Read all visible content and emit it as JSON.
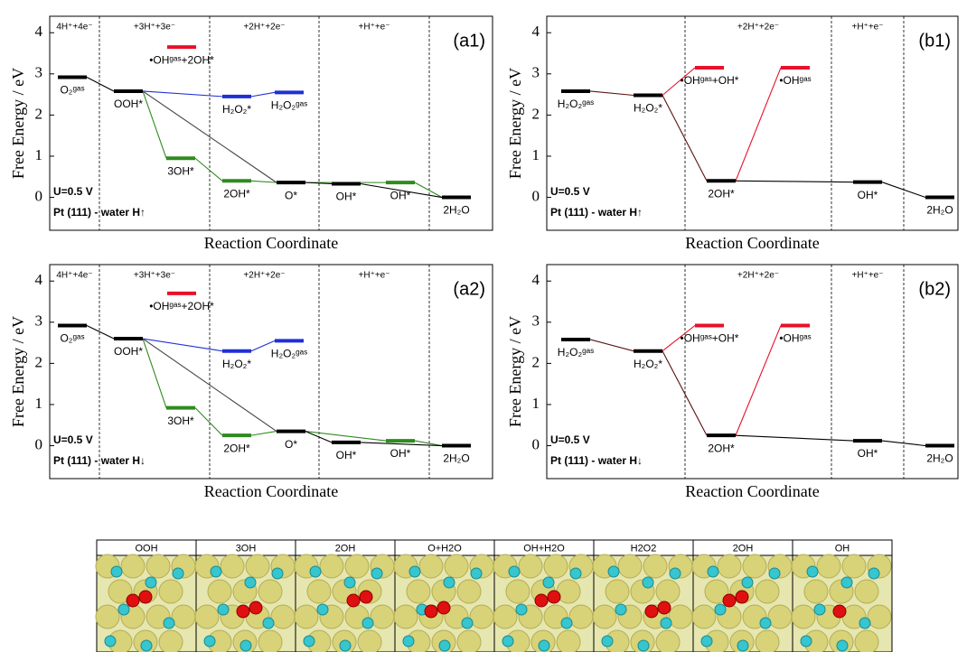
{
  "chart_data": [
    {
      "type": "energy-diagram",
      "title": "(a1)",
      "ylabel": "Free Energy / eV",
      "xlabel": "Reaction Coordinate",
      "ylim": [
        -0.8,
        4.4
      ],
      "yticks": [
        0,
        1,
        2,
        3,
        4
      ],
      "annotations": [
        "U=0.5 V",
        "Pt (111) - water H↑"
      ],
      "steps": [
        "4H⁺+4e⁻",
        "+3H⁺+3e⁻",
        "+2H⁺+2e⁻",
        "+H⁺+e⁻",
        null
      ],
      "levels": [
        {
          "label": "O₂ᵍᵃˢ",
          "value": 2.92,
          "color": "#000000"
        },
        {
          "label": "OOH*",
          "value": 2.58,
          "color": "#000000"
        },
        {
          "label": "•OHᵍᵃˢ+2OH*",
          "value": 3.65,
          "color": "#e8102a"
        },
        {
          "label": "3OH*",
          "value": 0.95,
          "color": "#2e8b1e"
        },
        {
          "label": "H₂O₂*",
          "value": 2.45,
          "color": "#1f2fd6"
        },
        {
          "label": "H₂O₂ᵍᵃˢ",
          "value": 2.55,
          "color": "#1f2fd6"
        },
        {
          "label": "2OH*",
          "value": 0.4,
          "color": "#2e8b1e"
        },
        {
          "label": "O*",
          "value": 0.36,
          "color": "#000000"
        },
        {
          "label": "OH*",
          "value": 0.33,
          "color": "#000000"
        },
        {
          "label": "OH*",
          "value": 0.36,
          "color": "#2e8b1e"
        },
        {
          "label": "2H₂O",
          "value": 0,
          "color": "#000000"
        }
      ]
    },
    {
      "type": "energy-diagram",
      "title": "(a2)",
      "ylabel": "Free Energy / eV",
      "xlabel": "Reaction Coordinate",
      "ylim": [
        -0.8,
        4.4
      ],
      "yticks": [
        0,
        1,
        2,
        3,
        4
      ],
      "annotations": [
        "U=0.5 V",
        "Pt (111) - water H↓"
      ],
      "steps": [
        "4H⁺+4e⁻",
        "+3H⁺+3e⁻",
        "+2H⁺+2e⁻",
        "+H⁺+e⁻",
        null
      ],
      "levels": [
        {
          "label": "O₂ᵍᵃˢ",
          "value": 2.92,
          "color": "#000000"
        },
        {
          "label": "OOH*",
          "value": 2.6,
          "color": "#000000"
        },
        {
          "label": "•OHᵍᵃˢ+2OH*",
          "value": 3.7,
          "color": "#e8102a"
        },
        {
          "label": "3OH*",
          "value": 0.92,
          "color": "#2e8b1e"
        },
        {
          "label": "H₂O₂*",
          "value": 2.3,
          "color": "#1f2fd6"
        },
        {
          "label": "H₂O₂ᵍᵃˢ",
          "value": 2.55,
          "color": "#1f2fd6"
        },
        {
          "label": "2OH*",
          "value": 0.25,
          "color": "#2e8b1e"
        },
        {
          "label": "O*",
          "value": 0.35,
          "color": "#000000"
        },
        {
          "label": "OH*",
          "value": 0.08,
          "color": "#000000"
        },
        {
          "label": "OH*",
          "value": 0.12,
          "color": "#2e8b1e"
        },
        {
          "label": "2H₂O",
          "value": 0,
          "color": "#000000"
        }
      ]
    },
    {
      "type": "energy-diagram",
      "title": "(b1)",
      "ylabel": "Free Energy / eV",
      "xlabel": "Reaction Coordinate",
      "ylim": [
        -0.8,
        4.4
      ],
      "yticks": [
        0,
        1,
        2,
        3,
        4
      ],
      "annotations": [
        "U=0.5 V",
        "Pt (111) - water H↑"
      ],
      "steps": [
        null,
        "+2H⁺+2e⁻",
        "+H⁺+e⁻",
        null
      ],
      "levels": [
        {
          "label": "H₂O₂ᵍᵃˢ",
          "value": 2.58,
          "color": "#000000"
        },
        {
          "label": "H₂O₂*",
          "value": 2.48,
          "color": "#000000"
        },
        {
          "label": "•OHᵍᵃˢ+OH*",
          "value": 3.15,
          "color": "#e8102a"
        },
        {
          "label": "•OHᵍᵃˢ",
          "value": 3.15,
          "color": "#e8102a"
        },
        {
          "label": "2OH*",
          "value": 0.4,
          "color": "#000000"
        },
        {
          "label": "OH*",
          "value": 0.37,
          "color": "#000000"
        },
        {
          "label": "2H₂O",
          "value": 0,
          "color": "#000000"
        }
      ]
    },
    {
      "type": "energy-diagram",
      "title": "(b2)",
      "ylabel": "Free Energy / eV",
      "xlabel": "Reaction Coordinate",
      "ylim": [
        -0.8,
        4.4
      ],
      "yticks": [
        0,
        1,
        2,
        3,
        4
      ],
      "annotations": [
        "U=0.5 V",
        "Pt (111) - water H↓"
      ],
      "steps": [
        null,
        "+2H⁺+2e⁻",
        "+H⁺+e⁻",
        null
      ],
      "levels": [
        {
          "label": "H₂O₂ᵍᵃˢ",
          "value": 2.58,
          "color": "#000000"
        },
        {
          "label": "H₂O₂*",
          "value": 2.3,
          "color": "#000000"
        },
        {
          "label": "•OHᵍᵃˢ+OH*",
          "value": 2.92,
          "color": "#e8102a"
        },
        {
          "label": "•OHᵍᵃˢ",
          "value": 2.92,
          "color": "#e8102a"
        },
        {
          "label": "2OH*",
          "value": 0.25,
          "color": "#000000"
        },
        {
          "label": "OH*",
          "value": 0.12,
          "color": "#000000"
        },
        {
          "label": "2H₂O",
          "value": 0,
          "color": "#000000"
        }
      ]
    }
  ],
  "snapshots": [
    "OOH",
    "3OH",
    "2OH",
    "O+H2O",
    "OH+H2O",
    "H2O2",
    "2OH",
    "OH"
  ]
}
